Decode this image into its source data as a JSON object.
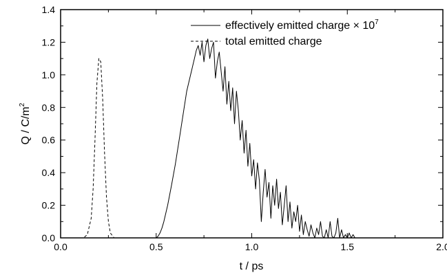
{
  "chart_data": {
    "type": "line",
    "xlabel": "t / ps",
    "ylabel_main": "Q / C/m",
    "ylabel_sup": "2",
    "xlim": [
      0.0,
      2.0
    ],
    "ylim": [
      0.0,
      1.4
    ],
    "x_ticks": [
      "0.0",
      "0.5",
      "1.0",
      "1.5",
      "2.0"
    ],
    "x_tick_values": [
      0.0,
      0.5,
      1.0,
      1.5,
      2.0
    ],
    "y_ticks": [
      "0.0",
      "0.2",
      "0.4",
      "0.6",
      "0.8",
      "1.0",
      "1.2",
      "1.4"
    ],
    "y_tick_values": [
      0.0,
      0.2,
      0.4,
      0.6,
      0.8,
      1.0,
      1.2,
      1.4
    ],
    "grid": false,
    "legend_position": "top-right",
    "series": [
      {
        "name": "effectively emitted charge × 10",
        "name_sup": "7",
        "style": "solid",
        "x": [
          0.0,
          0.5,
          0.51,
          0.52,
          0.53,
          0.54,
          0.56,
          0.58,
          0.6,
          0.62,
          0.64,
          0.66,
          0.68,
          0.69,
          0.7,
          0.71,
          0.72,
          0.73,
          0.74,
          0.75,
          0.76,
          0.77,
          0.78,
          0.79,
          0.8,
          0.81,
          0.82,
          0.83,
          0.84,
          0.85,
          0.86,
          0.87,
          0.88,
          0.89,
          0.9,
          0.91,
          0.92,
          0.93,
          0.94,
          0.95,
          0.96,
          0.97,
          0.98,
          0.99,
          1.0,
          1.01,
          1.02,
          1.03,
          1.04,
          1.05,
          1.06,
          1.07,
          1.08,
          1.09,
          1.1,
          1.11,
          1.12,
          1.13,
          1.14,
          1.15,
          1.16,
          1.17,
          1.18,
          1.19,
          1.2,
          1.21,
          1.22,
          1.23,
          1.24,
          1.25,
          1.26,
          1.27,
          1.28,
          1.29,
          1.3,
          1.31,
          1.32,
          1.33,
          1.34,
          1.35,
          1.36,
          1.37,
          1.38,
          1.39,
          1.4,
          1.41,
          1.42,
          1.43,
          1.44,
          1.45,
          1.46,
          1.47,
          1.48,
          1.49,
          1.5,
          1.51,
          1.52,
          1.53,
          1.54,
          1.55,
          2.0
        ],
        "y": [
          0.0,
          0.0,
          0.01,
          0.03,
          0.06,
          0.1,
          0.2,
          0.32,
          0.45,
          0.6,
          0.75,
          0.9,
          1.0,
          1.05,
          1.1,
          1.15,
          1.18,
          1.12,
          1.2,
          1.08,
          1.18,
          1.22,
          1.1,
          1.16,
          1.2,
          0.98,
          1.08,
          1.14,
          1.02,
          0.9,
          1.05,
          0.82,
          0.96,
          0.78,
          0.92,
          0.7,
          0.9,
          0.78,
          0.6,
          0.72,
          0.52,
          0.66,
          0.44,
          0.58,
          0.38,
          0.48,
          0.3,
          0.46,
          0.35,
          0.1,
          0.28,
          0.42,
          0.25,
          0.34,
          0.12,
          0.32,
          0.2,
          0.36,
          0.18,
          0.28,
          0.08,
          0.2,
          0.32,
          0.1,
          0.22,
          0.06,
          0.16,
          0.1,
          0.2,
          0.04,
          0.14,
          0.02,
          0.1,
          0.05,
          0.01,
          0.08,
          0.03,
          0.0,
          0.06,
          0.02,
          0.1,
          0.01,
          0.0,
          0.05,
          0.0,
          0.1,
          0.01,
          0.0,
          0.03,
          0.12,
          0.0,
          0.05,
          0.0,
          0.02,
          0.0,
          0.03,
          0.0,
          0.02,
          0.0,
          0.0,
          0.0
        ]
      },
      {
        "name": "total emitted charge",
        "style": "dashed",
        "x": [
          0.0,
          0.12,
          0.14,
          0.16,
          0.17,
          0.18,
          0.19,
          0.2,
          0.21,
          0.22,
          0.23,
          0.24,
          0.25,
          0.26,
          0.28,
          0.32,
          2.0
        ],
        "y": [
          0.0,
          0.0,
          0.02,
          0.12,
          0.3,
          0.6,
          0.95,
          1.1,
          1.08,
          0.85,
          0.52,
          0.25,
          0.1,
          0.03,
          0.0,
          0.0,
          0.0
        ]
      }
    ]
  }
}
